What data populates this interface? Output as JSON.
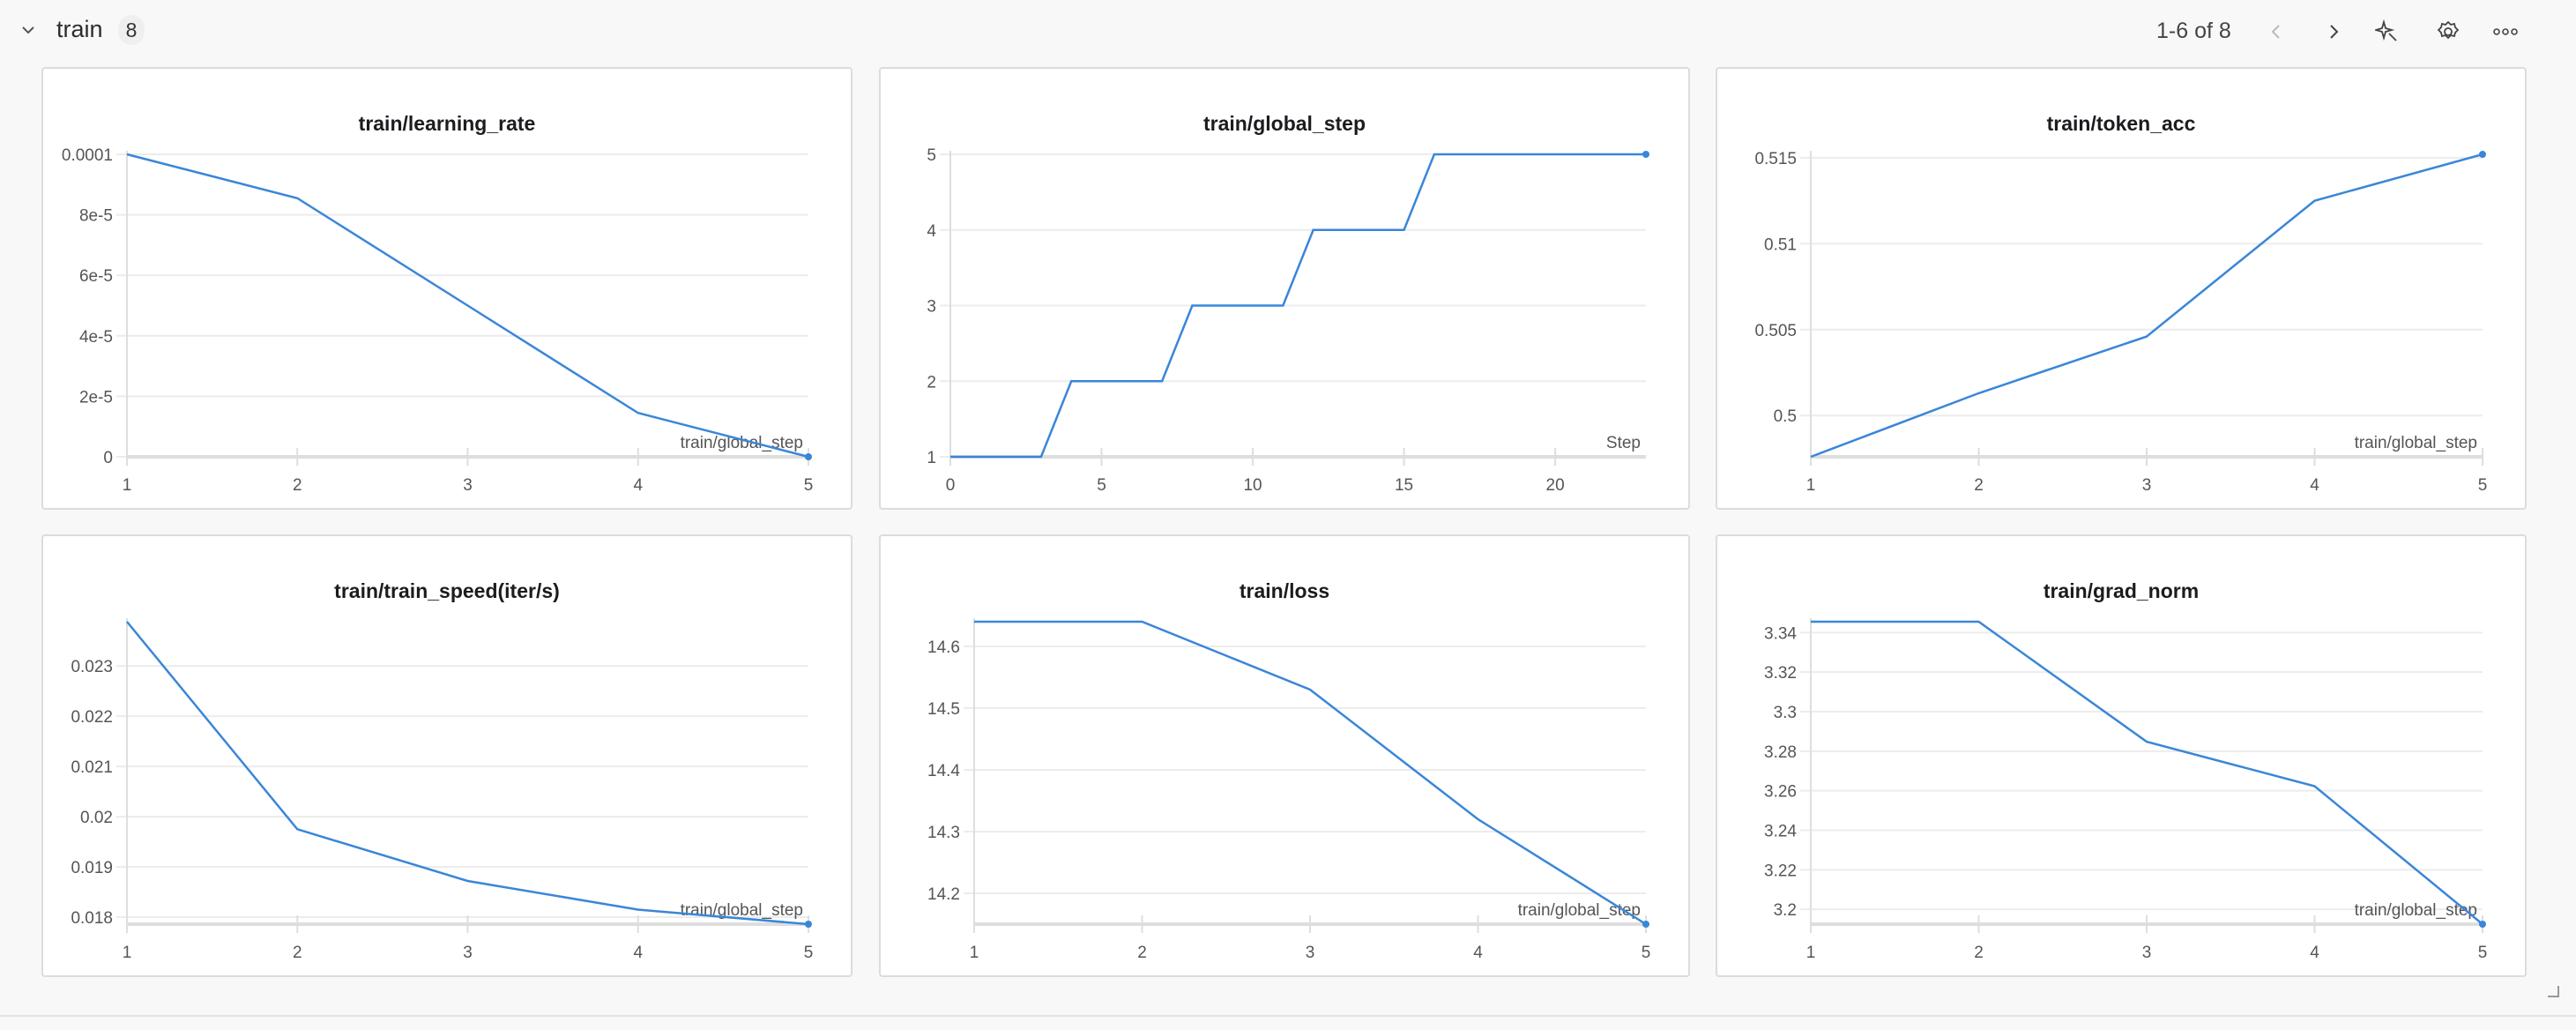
{
  "section": {
    "title": "train",
    "count": "8",
    "pager": "1-6 of 8"
  },
  "icons": {
    "collapse": "chevron-down-icon",
    "prev": "chevron-left-icon",
    "next": "chevron-right-icon",
    "pin": "sparkle-pin-icon",
    "settings": "gear-icon",
    "more": "more-horizontal-icon"
  },
  "colors": {
    "line": "#3a86d8",
    "grid": "#ececec",
    "axis": "#dedede"
  },
  "chart_data": [
    {
      "type": "line",
      "title": "train/learning_rate",
      "xlabel": "train/global_step",
      "x": [
        1,
        2,
        3,
        4,
        5
      ],
      "y": [
        0.0001,
        8.55e-05,
        5e-05,
        1.45e-05,
        0
      ],
      "xlim": [
        1,
        5
      ],
      "ylim": [
        0,
        0.0001
      ],
      "xticks": [
        1,
        2,
        3,
        4,
        5
      ],
      "xtick_labels": [
        "1",
        "2",
        "3",
        "4",
        "5"
      ],
      "yticks": [
        0,
        2e-05,
        4e-05,
        6e-05,
        8e-05,
        0.0001
      ],
      "ytick_labels": [
        "0",
        "2e-5",
        "4e-5",
        "6e-5",
        "8e-5",
        "0.0001"
      ],
      "grid": true
    },
    {
      "type": "line",
      "title": "train/global_step",
      "xlabel": "Step",
      "x": [
        0,
        3,
        4,
        7,
        8,
        11,
        12,
        15,
        16,
        23
      ],
      "y": [
        1,
        1,
        2,
        2,
        3,
        3,
        4,
        4,
        5,
        5
      ],
      "xlim": [
        0,
        23
      ],
      "ylim": [
        1,
        5
      ],
      "xticks": [
        0,
        5,
        10,
        15,
        20
      ],
      "xtick_labels": [
        "0",
        "5",
        "10",
        "15",
        "20"
      ],
      "yticks": [
        1,
        2,
        3,
        4,
        5
      ],
      "ytick_labels": [
        "1",
        "2",
        "3",
        "4",
        "5"
      ],
      "grid": true
    },
    {
      "type": "line",
      "title": "train/token_acc",
      "xlabel": "train/global_step",
      "x": [
        1,
        2,
        3,
        4,
        5
      ],
      "y": [
        0.4976,
        0.5013,
        0.5046,
        0.5125,
        0.5152
      ],
      "xlim": [
        1,
        5
      ],
      "ylim": [
        0.4976,
        0.5152
      ],
      "xticks": [
        1,
        2,
        3,
        4,
        5
      ],
      "xtick_labels": [
        "1",
        "2",
        "3",
        "4",
        "5"
      ],
      "yticks": [
        0.5,
        0.505,
        0.51,
        0.515
      ],
      "ytick_labels": [
        "0.5",
        "0.505",
        "0.51",
        "0.515"
      ],
      "grid": true
    },
    {
      "type": "line",
      "title": "train/train_speed(iter/s)",
      "xlabel": "train/global_step",
      "x": [
        1,
        2,
        3,
        4,
        5
      ],
      "y": [
        0.02388,
        0.01975,
        0.01872,
        0.01815,
        0.01786
      ],
      "xlim": [
        1,
        5
      ],
      "ylim": [
        0.01786,
        0.02388
      ],
      "xticks": [
        1,
        2,
        3,
        4,
        5
      ],
      "xtick_labels": [
        "1",
        "2",
        "3",
        "4",
        "5"
      ],
      "yticks": [
        0.018,
        0.019,
        0.02,
        0.021,
        0.022,
        0.023
      ],
      "ytick_labels": [
        "0.018",
        "0.019",
        "0.02",
        "0.021",
        "0.022",
        "0.023"
      ],
      "grid": true
    },
    {
      "type": "line",
      "title": "train/loss",
      "xlabel": "train/global_step",
      "x": [
        1,
        2,
        3,
        4,
        5
      ],
      "y": [
        14.64,
        14.64,
        14.53,
        14.32,
        14.15
      ],
      "xlim": [
        1,
        5
      ],
      "ylim": [
        14.15,
        14.64
      ],
      "xticks": [
        1,
        2,
        3,
        4,
        5
      ],
      "xtick_labels": [
        "1",
        "2",
        "3",
        "4",
        "5"
      ],
      "yticks": [
        14.2,
        14.3,
        14.4,
        14.5,
        14.6
      ],
      "ytick_labels": [
        "14.2",
        "14.3",
        "14.4",
        "14.5",
        "14.6"
      ],
      "grid": true
    },
    {
      "type": "line",
      "title": "train/grad_norm",
      "xlabel": "train/global_step",
      "x": [
        1,
        2,
        3,
        4,
        5
      ],
      "y": [
        3.3455,
        3.3455,
        3.2848,
        3.2623,
        3.1925
      ],
      "xlim": [
        1,
        5
      ],
      "ylim": [
        3.1925,
        3.3455
      ],
      "xticks": [
        1,
        2,
        3,
        4,
        5
      ],
      "xtick_labels": [
        "1",
        "2",
        "3",
        "4",
        "5"
      ],
      "yticks": [
        3.2,
        3.22,
        3.24,
        3.26,
        3.28,
        3.3,
        3.32,
        3.34
      ],
      "ytick_labels": [
        "3.2",
        "3.22",
        "3.24",
        "3.26",
        "3.28",
        "3.3",
        "3.32",
        "3.34"
      ],
      "grid": true
    }
  ]
}
